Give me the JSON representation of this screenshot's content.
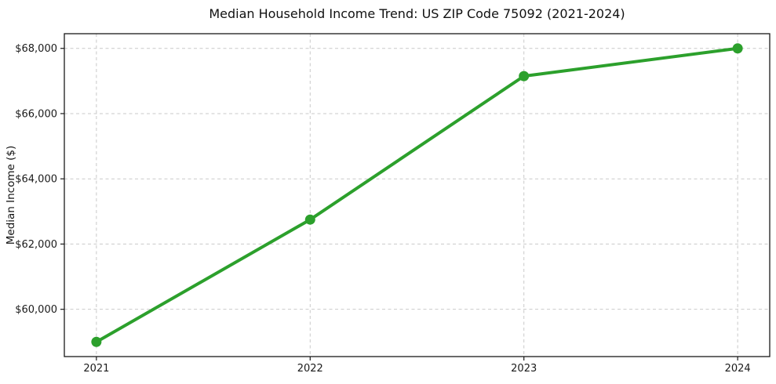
{
  "chart_data": {
    "type": "line",
    "title": "Median Household Income Trend: US ZIP Code 75092 (2021-2024)",
    "xlabel": "",
    "ylabel": "Median Income ($)",
    "categories": [
      "2021",
      "2022",
      "2023",
      "2024"
    ],
    "x": [
      2021,
      2022,
      2023,
      2024
    ],
    "values": [
      59000,
      62750,
      67150,
      68000
    ],
    "series_name": "Median Household Income",
    "yticks": [
      60000,
      62000,
      64000,
      66000,
      68000
    ],
    "ytick_labels": [
      "$60,000",
      "$62,000",
      "$64,000",
      "$66,000",
      "$68,000"
    ],
    "xtick_labels": [
      "2021",
      "2022",
      "2023",
      "2024"
    ],
    "ylim": [
      58550,
      68450
    ],
    "xlim": [
      2020.85,
      2024.15
    ],
    "grid": true,
    "grid_line_style": "dashed",
    "legend_position": "none",
    "line_color": "#2ca02c",
    "marker_color": "#2ca02c",
    "marker_shape": "circle",
    "grid_color": "#c9c9c9",
    "spine_color": "#1a1a1a",
    "background_color": "#ffffff"
  }
}
